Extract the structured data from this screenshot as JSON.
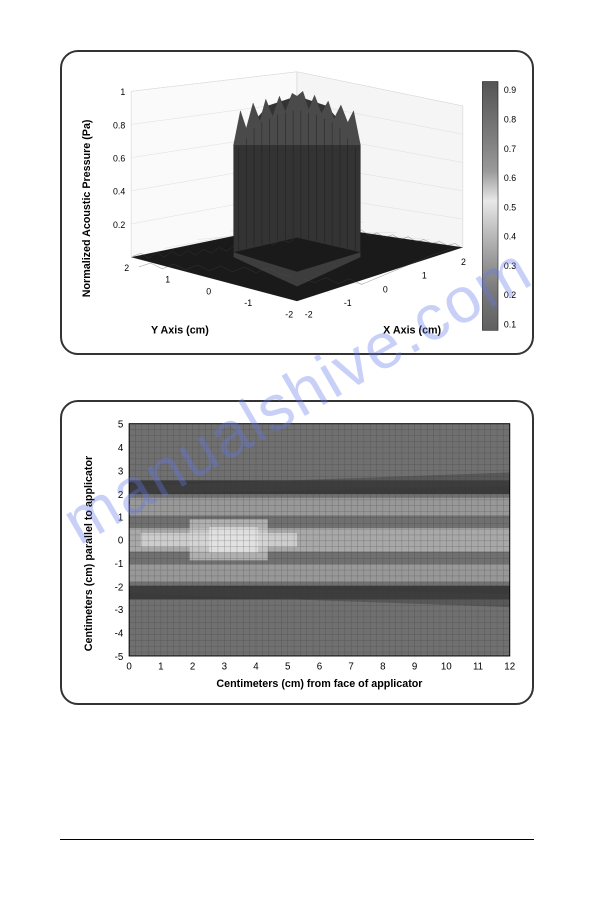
{
  "watermark_text": "manualshive.com",
  "watermark_color": "rgba(100,120,235,0.35)",
  "chart1": {
    "type": "3d-surface",
    "zlabel": "Normalized Acoustic Pressure (Pa)",
    "xlabel": "X Axis (cm)",
    "ylabel": "Y Axis (cm)",
    "zlim": [
      0,
      1
    ],
    "zticks": [
      "0.2",
      "0.4",
      "0.6",
      "0.8",
      "1"
    ],
    "xlim": [
      -2,
      2
    ],
    "xticks": [
      "-2",
      "-1",
      "0",
      "1",
      "2"
    ],
    "ylim": [
      -2,
      2
    ],
    "yticks": [
      "-2",
      "-1",
      "0",
      "1",
      "2"
    ],
    "colorbar_ticks": [
      "0.1",
      "0.2",
      "0.3",
      "0.4",
      "0.5",
      "0.6",
      "0.7",
      "0.8",
      "0.9"
    ],
    "colorbar_colors_top_to_bottom": [
      "#555555",
      "#6a6a6a",
      "#808080",
      "#9a9a9a",
      "#bfbfbf",
      "#e8e8e8",
      "#bfbfbf",
      "#9a9a9a",
      "#7a7a7a",
      "#606060"
    ],
    "surface_base_color": "#2a2a2a",
    "surface_peak_color": "#555555",
    "label_fontsize": 11,
    "tick_fontsize": 9,
    "background": "#ffffff",
    "grid_color": "#cccccc"
  },
  "chart2": {
    "type": "heatmap",
    "xlabel": "Centimeters (cm) from face of applicator",
    "ylabel": "Centimeters (cm) parallel to applicator",
    "xlim": [
      0,
      12
    ],
    "xticks": [
      "0",
      "1",
      "2",
      "3",
      "4",
      "5",
      "6",
      "7",
      "8",
      "9",
      "10",
      "11",
      "12"
    ],
    "ylim": [
      -5,
      5
    ],
    "yticks": [
      "-5",
      "-4",
      "-3",
      "-2",
      "-1",
      "0",
      "1",
      "2",
      "3",
      "4",
      "5"
    ],
    "grid_color": "#3a3a3a",
    "background_field": "#707070",
    "beam_bright": "#d0d0d0",
    "beam_dark": "#353535",
    "label_fontsize": 11,
    "tick_fontsize": 10
  }
}
